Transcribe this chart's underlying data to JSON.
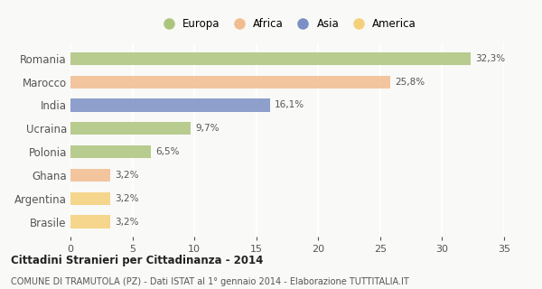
{
  "categories": [
    "Romania",
    "Marocco",
    "India",
    "Ucraina",
    "Polonia",
    "Ghana",
    "Argentina",
    "Brasile"
  ],
  "values": [
    32.3,
    25.8,
    16.1,
    9.7,
    6.5,
    3.2,
    3.2,
    3.2
  ],
  "labels": [
    "32,3%",
    "25,8%",
    "16,1%",
    "9,7%",
    "6,5%",
    "3,2%",
    "3,2%",
    "3,2%"
  ],
  "colors": [
    "#adc47d",
    "#f2bc8f",
    "#7b8fc4",
    "#adc47d",
    "#adc47d",
    "#f2bc8f",
    "#f5d07a",
    "#f5d07a"
  ],
  "legend_labels": [
    "Europa",
    "Africa",
    "Asia",
    "America"
  ],
  "legend_colors": [
    "#adc47d",
    "#f2bc8f",
    "#7b8fc4",
    "#f5d07a"
  ],
  "title": "Cittadini Stranieri per Cittadinanza - 2014",
  "subtitle": "COMUNE DI TRAMUTOLA (PZ) - Dati ISTAT al 1° gennaio 2014 - Elaborazione TUTTITALIA.IT",
  "xlim": [
    0,
    35
  ],
  "xticks": [
    0,
    5,
    10,
    15,
    20,
    25,
    30,
    35
  ],
  "background_color": "#f9f9f7",
  "grid_color": "#ffffff",
  "bar_height": 0.55,
  "bar_alpha": 0.85
}
